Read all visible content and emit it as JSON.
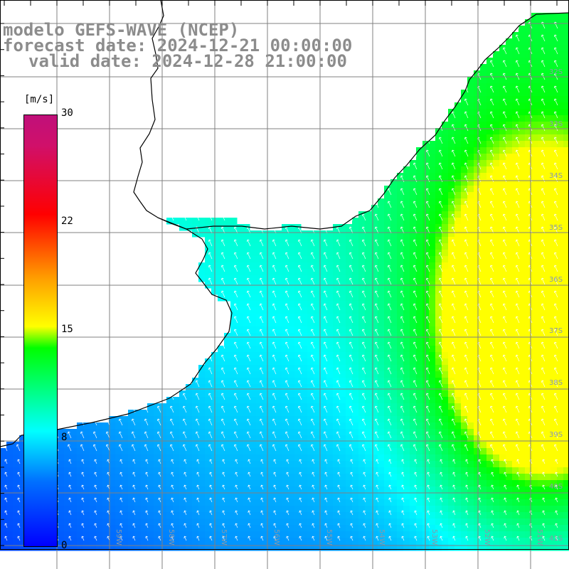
{
  "title": {
    "line1": "modelo GEFS-WAVE (NCEP)",
    "line2": "forecast date: 2024-12-21 00:00:00",
    "line3": "valid date: 2024-12-28 21:00:00"
  },
  "colorbar": {
    "unit": "[m/s]",
    "ticks": [
      "30",
      "22",
      "15",
      "8",
      "0"
    ],
    "tick_values": [
      30,
      22,
      15,
      8,
      0
    ],
    "colors": [
      "#0000ff",
      "#0070ff",
      "#00ffff",
      "#00ff00",
      "#ffff00",
      "#ffa000",
      "#ff0000",
      "#c0107a"
    ]
  },
  "map": {
    "lat_labels": [
      "32S",
      "33S",
      "34S",
      "35S",
      "36S",
      "37S",
      "38S",
      "39S",
      "40S",
      "41S"
    ],
    "lon_labels": [
      "59W",
      "58W",
      "57W",
      "56W",
      "55W",
      "54W",
      "53W",
      "52W",
      "51W"
    ],
    "land_color": "#ffffff",
    "grid_color": "#808080",
    "arrow_color": "#ffffff"
  }
}
